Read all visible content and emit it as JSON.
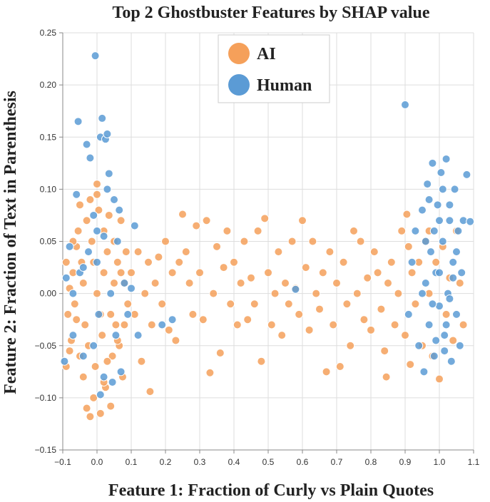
{
  "chart_data": {
    "type": "scatter",
    "title": "Top 2 Ghostbuster Features by SHAP value",
    "xlabel": "Feature 1: Fraction of Curly vs Plain Quotes",
    "ylabel": "Feature 2: Fraction of Text in Parenthesis",
    "xlim": [
      -0.1,
      1.1
    ],
    "ylim": [
      -0.15,
      0.25
    ],
    "x_ticks": [
      -0.1,
      0.0,
      0.1,
      0.2,
      0.3,
      0.4,
      0.5,
      0.6,
      0.7,
      0.8,
      0.9,
      1.0,
      1.1
    ],
    "x_tick_labels": [
      "−0.1",
      "0.0",
      "0.1",
      "0.2",
      "0.3",
      "0.4",
      "0.5",
      "0.6",
      "0.7",
      "0.8",
      "0.9",
      "1.0",
      "1.1"
    ],
    "y_ticks": [
      -0.15,
      -0.1,
      -0.05,
      0.0,
      0.05,
      0.1,
      0.15,
      0.2,
      0.25
    ],
    "y_tick_labels": [
      "−0.15",
      "−0.10",
      "−0.05",
      "0.00",
      "0.05",
      "0.10",
      "0.15",
      "0.20",
      "0.25"
    ],
    "grid": true,
    "legend_position": "top-center",
    "series": [
      {
        "name": "AI",
        "color": "#f5a05a",
        "points": [
          [
            -0.09,
            0.03
          ],
          [
            -0.08,
            0.005
          ],
          [
            -0.085,
            -0.02
          ],
          [
            -0.075,
            -0.045
          ],
          [
            -0.09,
            -0.07
          ],
          [
            -0.07,
            0.02
          ],
          [
            -0.06,
            0.045
          ],
          [
            -0.065,
            -0.01
          ],
          [
            -0.05,
            -0.06
          ],
          [
            -0.055,
            0.06
          ],
          [
            -0.04,
            -0.08
          ],
          [
            -0.045,
            0.03
          ],
          [
            -0.03,
            0.07
          ],
          [
            -0.035,
            -0.03
          ],
          [
            -0.02,
            0.09
          ],
          [
            -0.025,
            -0.05
          ],
          [
            -0.01,
            -0.1
          ],
          [
            -0.015,
            0.05
          ],
          [
            0.0,
            0.105
          ],
          [
            -0.005,
            -0.07
          ],
          [
            0.01,
            -0.115
          ],
          [
            0.005,
            0.08
          ],
          [
            0.02,
            0.06
          ],
          [
            0.015,
            -0.04
          ],
          [
            0.03,
            0.04
          ],
          [
            0.025,
            -0.09
          ],
          [
            0.04,
            -0.02
          ],
          [
            0.035,
            0.075
          ],
          [
            0.05,
            0.01
          ],
          [
            0.045,
            -0.06
          ],
          [
            0.06,
            0.03
          ],
          [
            0.055,
            -0.03
          ],
          [
            0.07,
            0.07
          ],
          [
            0.065,
            -0.05
          ],
          [
            0.08,
            0.01
          ],
          [
            0.075,
            -0.08
          ],
          [
            0.09,
            -0.01
          ],
          [
            0.085,
            0.04
          ],
          [
            -0.03,
            -0.11
          ],
          [
            -0.02,
            -0.118
          ],
          [
            0.04,
            -0.108
          ],
          [
            -0.01,
            0.03
          ],
          [
            0.0,
            0.0
          ],
          [
            0.01,
            -0.02
          ],
          [
            0.02,
            0.02
          ],
          [
            -0.06,
            -0.025
          ],
          [
            -0.04,
            0.01
          ],
          [
            0.03,
            -0.065
          ],
          [
            0.05,
            0.05
          ],
          [
            0.06,
            -0.045
          ],
          [
            -0.07,
            0.05
          ],
          [
            -0.05,
            0.085
          ],
          [
            0.0,
            0.095
          ],
          [
            0.02,
            -0.085
          ],
          [
            0.07,
            0.02
          ],
          [
            0.08,
            -0.03
          ],
          [
            -0.08,
            -0.055
          ],
          [
            0.1,
            0.02
          ],
          [
            0.11,
            -0.02
          ],
          [
            0.12,
            0.04
          ],
          [
            0.13,
            -0.065
          ],
          [
            0.14,
            0.0
          ],
          [
            0.15,
            0.03
          ],
          [
            0.16,
            -0.03
          ],
          [
            0.155,
            -0.094
          ],
          [
            0.17,
            0.01
          ],
          [
            0.18,
            0.035
          ],
          [
            0.19,
            -0.01
          ],
          [
            0.2,
            0.05
          ],
          [
            0.21,
            -0.035
          ],
          [
            0.22,
            0.02
          ],
          [
            0.23,
            -0.045
          ],
          [
            0.24,
            0.03
          ],
          [
            0.25,
            0.076
          ],
          [
            0.26,
            0.04
          ],
          [
            0.27,
            0.01
          ],
          [
            0.28,
            -0.02
          ],
          [
            0.29,
            0.065
          ],
          [
            0.3,
            0.02
          ],
          [
            0.31,
            -0.025
          ],
          [
            0.32,
            0.07
          ],
          [
            0.33,
            -0.076
          ],
          [
            0.34,
            0.0
          ],
          [
            0.35,
            0.045
          ],
          [
            0.36,
            -0.057
          ],
          [
            0.37,
            0.025
          ],
          [
            0.38,
            0.06
          ],
          [
            0.39,
            -0.01
          ],
          [
            0.4,
            0.03
          ],
          [
            0.41,
            -0.03
          ],
          [
            0.42,
            0.01
          ],
          [
            0.43,
            0.05
          ],
          [
            0.44,
            -0.025
          ],
          [
            0.45,
            0.015
          ],
          [
            0.46,
            -0.01
          ],
          [
            0.47,
            0.06
          ],
          [
            0.48,
            -0.065
          ],
          [
            0.49,
            0.072
          ],
          [
            0.5,
            0.02
          ],
          [
            0.51,
            -0.03
          ],
          [
            0.52,
            0.0
          ],
          [
            0.53,
            0.04
          ],
          [
            0.54,
            -0.04
          ],
          [
            0.55,
            0.01
          ],
          [
            0.56,
            -0.01
          ],
          [
            0.57,
            0.05
          ],
          [
            0.58,
            0.005
          ],
          [
            0.59,
            -0.02
          ],
          [
            0.6,
            0.07
          ],
          [
            0.61,
            0.025
          ],
          [
            0.62,
            -0.035
          ],
          [
            0.63,
            0.05
          ],
          [
            0.64,
            0.0
          ],
          [
            0.65,
            -0.015
          ],
          [
            0.66,
            0.02
          ],
          [
            0.67,
            -0.075
          ],
          [
            0.68,
            0.04
          ],
          [
            0.69,
            -0.03
          ],
          [
            0.7,
            0.01
          ],
          [
            0.71,
            -0.07
          ],
          [
            0.72,
            0.03
          ],
          [
            0.73,
            -0.01
          ],
          [
            0.74,
            -0.05
          ],
          [
            0.75,
            0.06
          ],
          [
            0.76,
            0.0
          ],
          [
            0.77,
            0.05
          ],
          [
            0.78,
            -0.025
          ],
          [
            0.79,
            0.015
          ],
          [
            0.8,
            -0.035
          ],
          [
            0.81,
            0.04
          ],
          [
            0.82,
            0.02
          ],
          [
            0.83,
            -0.015
          ],
          [
            0.84,
            -0.055
          ],
          [
            0.845,
            -0.08
          ],
          [
            0.85,
            0.01
          ],
          [
            0.86,
            0.03
          ],
          [
            0.87,
            -0.03
          ],
          [
            0.88,
            0.0
          ],
          [
            0.89,
            0.06
          ],
          [
            0.9,
            -0.04
          ],
          [
            0.905,
            0.076
          ],
          [
            0.91,
            0.045
          ],
          [
            0.915,
            -0.068
          ],
          [
            0.92,
            0.02
          ],
          [
            0.93,
            -0.01
          ],
          [
            0.94,
            0.03
          ],
          [
            0.95,
            -0.05
          ],
          [
            0.96,
            0.05
          ],
          [
            0.97,
            0.0
          ],
          [
            0.98,
            -0.06
          ],
          [
            0.99,
            0.03
          ],
          [
            1.0,
            -0.082
          ],
          [
            1.01,
            0.045
          ],
          [
            1.02,
            -0.02
          ],
          [
            1.03,
            0.015
          ],
          [
            1.04,
            -0.045
          ],
          [
            1.05,
            0.06
          ],
          [
            1.06,
            0.01
          ],
          [
            1.07,
            -0.03
          ],
          [
            0.97,
            0.06
          ]
        ]
      },
      {
        "name": "Human",
        "color": "#5b9bd5",
        "points": [
          [
            -0.09,
            0.015
          ],
          [
            -0.095,
            -0.065
          ],
          [
            -0.08,
            0.045
          ],
          [
            -0.07,
            -0.04
          ],
          [
            -0.06,
            0.095
          ],
          [
            -0.055,
            0.165
          ],
          [
            -0.05,
            0.02
          ],
          [
            -0.04,
            -0.06
          ],
          [
            -0.03,
            0.143
          ],
          [
            -0.025,
            0.04
          ],
          [
            -0.02,
            0.13
          ],
          [
            -0.01,
            0.075
          ],
          [
            -0.005,
            0.228
          ],
          [
            0.0,
            0.03
          ],
          [
            0.005,
            -0.02
          ],
          [
            0.01,
            0.15
          ],
          [
            0.015,
            0.168
          ],
          [
            0.02,
            0.055
          ],
          [
            0.025,
            0.148
          ],
          [
            0.03,
            0.153
          ],
          [
            0.035,
            0.115
          ],
          [
            0.04,
            0.0
          ],
          [
            0.045,
            -0.085
          ],
          [
            0.05,
            0.09
          ],
          [
            0.055,
            -0.04
          ],
          [
            0.06,
            0.05
          ],
          [
            0.065,
            0.08
          ],
          [
            0.07,
            -0.075
          ],
          [
            0.08,
            0.01
          ],
          [
            0.09,
            -0.02
          ],
          [
            0.1,
            0.005
          ],
          [
            0.11,
            0.065
          ],
          [
            0.12,
            -0.04
          ],
          [
            -0.07,
            0.0
          ],
          [
            -0.04,
            0.025
          ],
          [
            0.01,
            -0.097
          ],
          [
            0.02,
            -0.08
          ],
          [
            -0.01,
            -0.05
          ],
          [
            0.03,
            0.1
          ],
          [
            0.0,
            0.06
          ],
          [
            0.19,
            -0.03
          ],
          [
            0.22,
            -0.025
          ],
          [
            0.58,
            0.004
          ],
          [
            0.9,
            0.181
          ],
          [
            0.91,
            -0.02
          ],
          [
            0.92,
            0.03
          ],
          [
            0.93,
            0.06
          ],
          [
            0.94,
            -0.05
          ],
          [
            0.95,
            0.08
          ],
          [
            0.955,
            -0.075
          ],
          [
            0.96,
            0.01
          ],
          [
            0.965,
            0.105
          ],
          [
            0.97,
            -0.03
          ],
          [
            0.975,
            0.04
          ],
          [
            0.98,
            0.125
          ],
          [
            0.985,
            -0.06
          ],
          [
            0.99,
            0.02
          ],
          [
            0.995,
            0.085
          ],
          [
            1.0,
            -0.012
          ],
          [
            1.005,
            0.116
          ],
          [
            1.01,
            0.05
          ],
          [
            1.015,
            -0.04
          ],
          [
            1.02,
            0.129
          ],
          [
            1.025,
            0.0
          ],
          [
            1.03,
            0.07
          ],
          [
            1.035,
            -0.065
          ],
          [
            1.04,
            0.03
          ],
          [
            1.045,
            0.1
          ],
          [
            1.05,
            -0.02
          ],
          [
            1.055,
            0.06
          ],
          [
            1.06,
            -0.05
          ],
          [
            1.065,
            0.02
          ],
          [
            1.07,
            0.07
          ],
          [
            1.08,
            0.114
          ],
          [
            1.09,
            0.069
          ],
          [
            0.96,
            0.05
          ],
          [
            0.98,
            -0.01
          ],
          [
            1.0,
            0.07
          ],
          [
            1.02,
            -0.03
          ],
          [
            1.04,
            0.015
          ],
          [
            0.97,
            0.09
          ],
          [
            0.99,
            -0.045
          ],
          [
            1.01,
            0.1
          ],
          [
            1.03,
            -0.005
          ],
          [
            1.05,
            0.04
          ],
          [
            0.985,
            0.06
          ],
          [
            1.0,
            0.02
          ],
          [
            1.015,
            -0.055
          ],
          [
            1.03,
            0.085
          ],
          [
            0.95,
            0.0
          ]
        ]
      }
    ]
  }
}
